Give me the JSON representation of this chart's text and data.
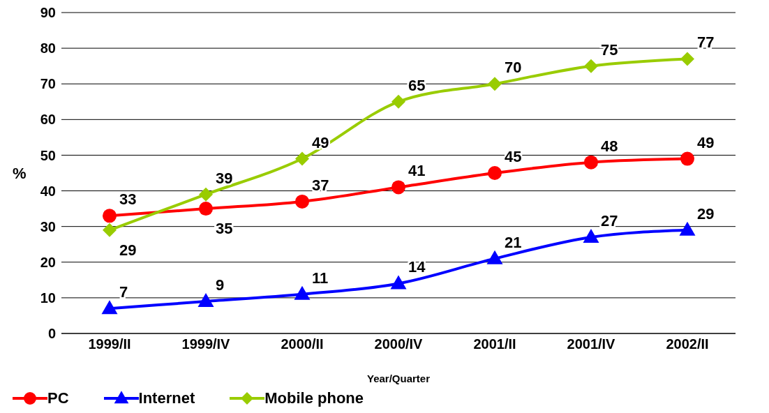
{
  "chart_data": {
    "type": "line",
    "xlabel": "Year/Quarter",
    "ylabel": "%",
    "categories": [
      "1999/II",
      "1999/IV",
      "2000/II",
      "2000/IV",
      "2001/II",
      "2001/IV",
      "2002/II"
    ],
    "series": [
      {
        "name": "PC",
        "color": "#ff0000",
        "marker": "circle",
        "values": [
          33,
          35,
          37,
          41,
          45,
          48,
          49
        ]
      },
      {
        "name": "Internet",
        "color": "#0000ff",
        "marker": "triangle",
        "values": [
          7,
          9,
          11,
          14,
          21,
          27,
          29
        ]
      },
      {
        "name": "Mobile phone",
        "color": "#99cc00",
        "marker": "diamond",
        "values": [
          29,
          39,
          49,
          65,
          70,
          75,
          77
        ]
      }
    ],
    "ylim": [
      0,
      90
    ],
    "yticks": [
      0,
      10,
      20,
      30,
      40,
      50,
      60,
      70,
      80,
      90
    ],
    "grid": "y",
    "legend": "bottom left",
    "data_labels": true
  }
}
